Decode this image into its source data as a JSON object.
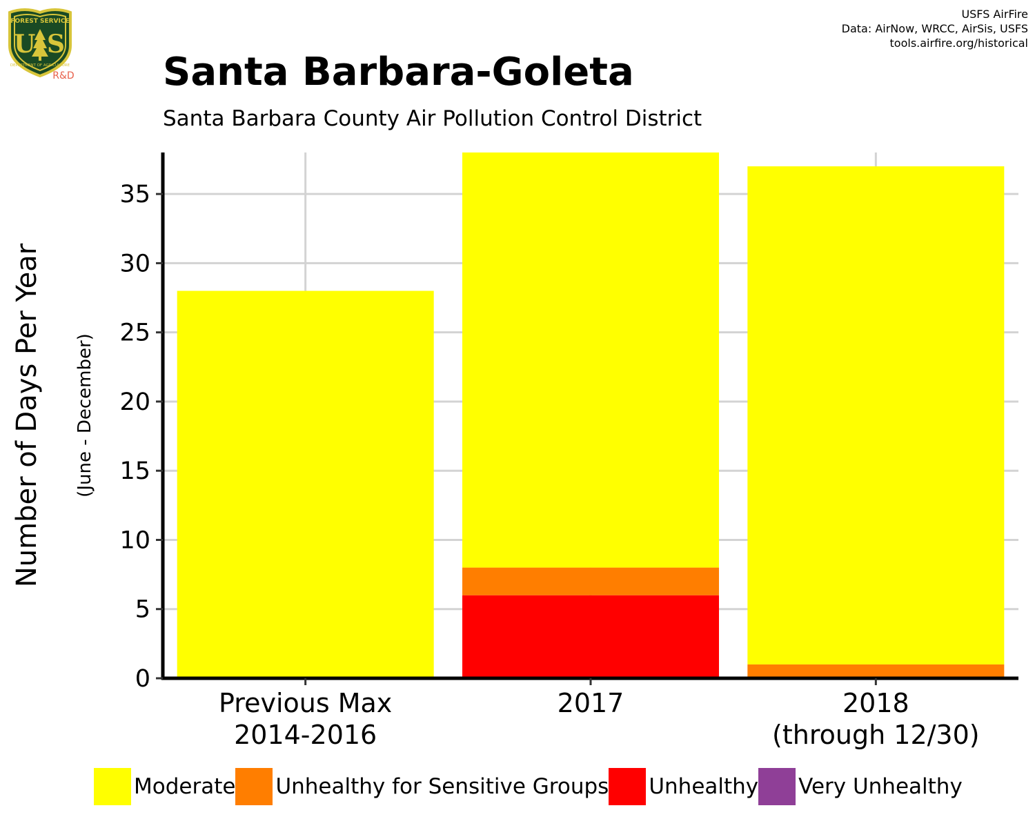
{
  "header": {
    "title": "Santa Barbara-Goleta",
    "subtitle": "Santa Barbara County Air Pollution Control District",
    "credits": [
      "USFS AirFire",
      "Data: AirNow, WRCC, AirSis, USFS",
      "tools.airfire.org/historical"
    ]
  },
  "logo": {
    "top_text": "FOREST SERVICE",
    "letters": "U S",
    "bottom_text": "DEPARTMENT OF AGRICULTURE",
    "tag": "R&D",
    "colors": {
      "shield": "#1a4a24",
      "gold": "#d8c53a",
      "tag": "#e8604a"
    }
  },
  "chart_data": {
    "type": "bar",
    "stacked": true,
    "categories": [
      [
        "Previous Max",
        "2014-2016"
      ],
      [
        "2017"
      ],
      [
        "2018",
        "(through 12/30)"
      ]
    ],
    "series": [
      {
        "name": "Unhealthy",
        "color": "#ff0000",
        "values": [
          0,
          6,
          0
        ]
      },
      {
        "name": "Unhealthy for Sensitive Groups",
        "color": "#ff7e00",
        "values": [
          0,
          2,
          1
        ]
      },
      {
        "name": "Moderate",
        "color": "#ffff00",
        "values": [
          28,
          30,
          36
        ]
      }
    ],
    "ylabel": "Number of Days Per Year",
    "ylabel_sub": "(June - December)",
    "ylim": [
      0,
      38
    ],
    "yticks": [
      0,
      5,
      10,
      15,
      20,
      25,
      30,
      35
    ],
    "grid": true,
    "legend_position": "bottom"
  },
  "legend": [
    {
      "label": "Moderate",
      "color": "#ffff00"
    },
    {
      "label": "Unhealthy for Sensitive Groups",
      "color": "#ff7e00"
    },
    {
      "label": "Unhealthy",
      "color": "#ff0000"
    },
    {
      "label": "Very Unhealthy",
      "color": "#8f3f97"
    }
  ]
}
